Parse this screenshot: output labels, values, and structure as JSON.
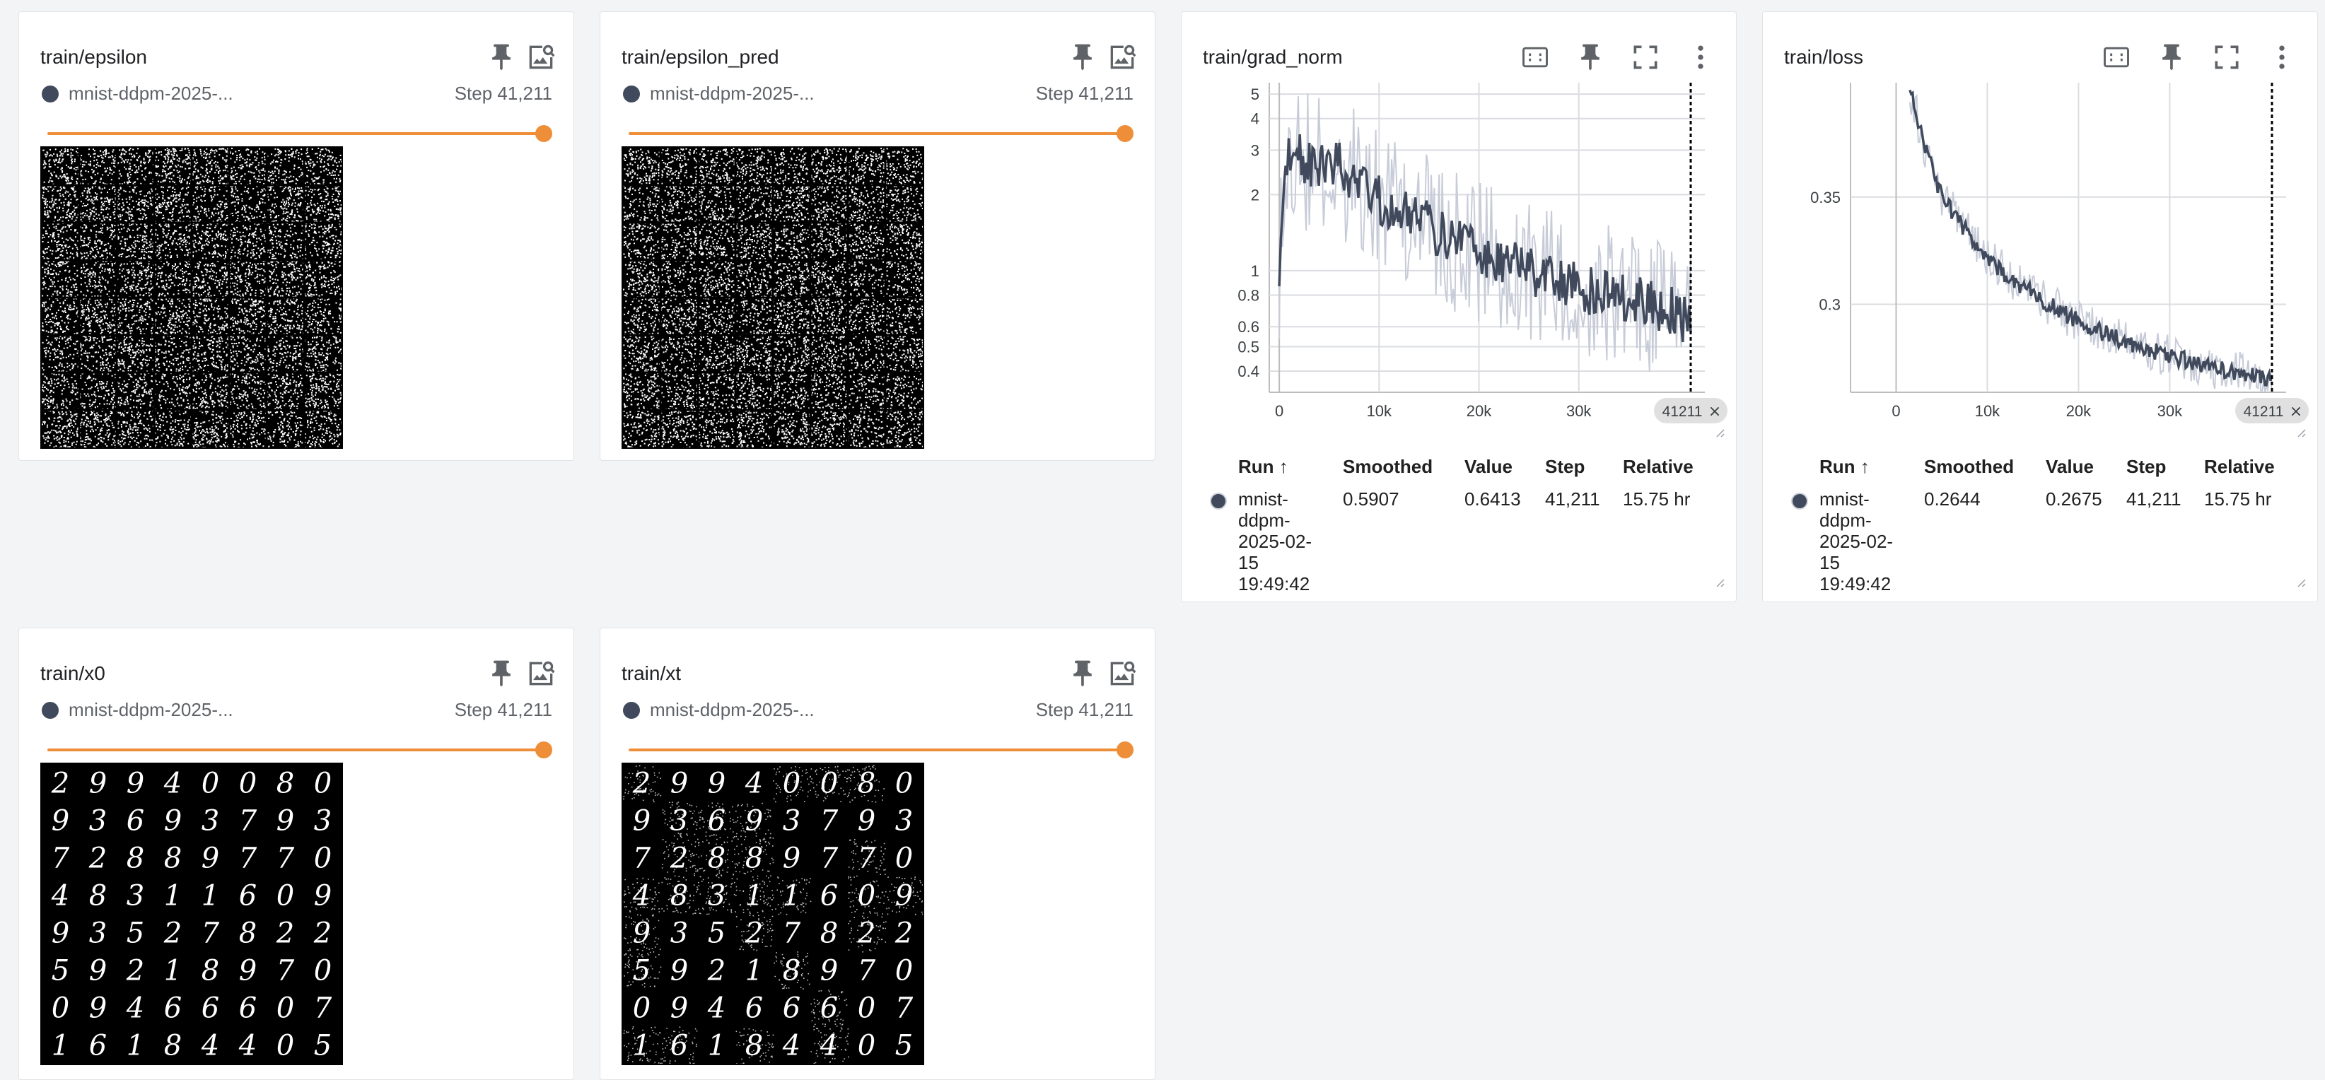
{
  "cards": {
    "epsilon": {
      "title": "train/epsilon",
      "run": "mnist-ddpm-2025-...",
      "step": "Step 41,211"
    },
    "epsilon_pred": {
      "title": "train/epsilon_pred",
      "run": "mnist-ddpm-2025-...",
      "step": "Step 41,211"
    },
    "x0": {
      "title": "train/x0",
      "run": "mnist-ddpm-2025-...",
      "step": "Step 41,211"
    },
    "xt": {
      "title": "train/xt",
      "run": "mnist-ddpm-2025-...",
      "step": "Step 41,211"
    },
    "grad_norm": {
      "title": "train/grad_norm",
      "table": {
        "headers": [
          "Run ↑",
          "Smoothed",
          "Value",
          "Step",
          "Relative"
        ],
        "run_lines": [
          "mnist-",
          "ddpm-",
          "2025-02-",
          "15",
          "19:49:42"
        ],
        "smoothed": "0.5907",
        "value": "0.6413",
        "step": "41,211",
        "relative": "15.75 hr"
      }
    },
    "loss": {
      "title": "train/loss",
      "table": {
        "headers": [
          "Run ↑",
          "Smoothed",
          "Value",
          "Step",
          "Relative"
        ],
        "run_lines": [
          "mnist-",
          "ddpm-",
          "2025-02-",
          "15",
          "19:49:42"
        ],
        "smoothed": "0.2644",
        "value": "0.2675",
        "step": "41,211",
        "relative": "15.75 hr"
      }
    }
  },
  "digit_grid": [
    [
      "2",
      "9",
      "9",
      "4",
      "0",
      "0",
      "8",
      "0"
    ],
    [
      "9",
      "3",
      "6",
      "9",
      "3",
      "7",
      "9",
      "3"
    ],
    [
      "7",
      "2",
      "8",
      "8",
      "9",
      "7",
      "7",
      "0"
    ],
    [
      "4",
      "8",
      "3",
      "1",
      "1",
      "6",
      "0",
      "9"
    ],
    [
      "9",
      "3",
      "5",
      "2",
      "7",
      "8",
      "2",
      "2"
    ],
    [
      "5",
      "9",
      "2",
      "1",
      "8",
      "9",
      "7",
      "0"
    ],
    [
      "0",
      "9",
      "4",
      "6",
      "6",
      "6",
      "0",
      "7"
    ],
    [
      "1",
      "6",
      "1",
      "8",
      "4",
      "4",
      "0",
      "5"
    ]
  ],
  "colors": {
    "accent": "#ef8e38",
    "series": "#404a5c",
    "series_raw": "#c7ccd8"
  },
  "chart_data": [
    {
      "type": "line",
      "title": "train/grad_norm",
      "x_ticks": [
        "0",
        "10k",
        "20k",
        "30k"
      ],
      "x_tick_values": [
        0,
        10000,
        20000,
        30000
      ],
      "y_ticks": [
        "0.4",
        "0.5",
        "0.6",
        "0.8",
        "1",
        "2",
        "3",
        "4",
        "5"
      ],
      "y_tick_values": [
        0.4,
        0.5,
        0.6,
        0.8,
        1,
        2,
        3,
        4,
        5
      ],
      "y_scale": "log",
      "xlim": [
        -1000,
        41211
      ],
      "ylim": [
        0.33,
        5.2
      ],
      "cursor_label": "41211",
      "cursor_step": 41211,
      "series": [
        {
          "x": [
            0,
            500,
            1500,
            3000,
            5000,
            7500,
            10000,
            12500,
            15000,
            17500,
            20000,
            22500,
            25000,
            27500,
            30000,
            32500,
            35000,
            37500,
            40000,
            41211
          ],
          "values": [
            0.8,
            2.4,
            3.0,
            2.6,
            2.8,
            2.3,
            1.9,
            1.7,
            1.5,
            1.3,
            1.2,
            1.1,
            1.0,
            0.95,
            0.85,
            0.8,
            0.78,
            0.72,
            0.68,
            0.59
          ]
        }
      ]
    },
    {
      "type": "line",
      "title": "train/loss",
      "x_ticks": [
        "0",
        "10k",
        "20k",
        "30k"
      ],
      "x_tick_values": [
        0,
        10000,
        20000,
        30000
      ],
      "y_ticks": [
        "0.3",
        "0.35"
      ],
      "y_tick_values": [
        0.3,
        0.35
      ],
      "y_scale": "linear",
      "xlim": [
        -5000,
        41211
      ],
      "ylim": [
        0.259,
        0.4
      ],
      "cursor_label": "41211",
      "cursor_step": 41211,
      "series": [
        {
          "x": [
            1500,
            3000,
            5000,
            7500,
            10000,
            12500,
            15000,
            17500,
            20000,
            22500,
            25000,
            27500,
            30000,
            32500,
            35000,
            37500,
            40000,
            41211
          ],
          "values": [
            0.4,
            0.375,
            0.35,
            0.335,
            0.322,
            0.312,
            0.305,
            0.298,
            0.292,
            0.287,
            0.283,
            0.279,
            0.276,
            0.273,
            0.27,
            0.268,
            0.266,
            0.264
          ]
        }
      ]
    }
  ]
}
